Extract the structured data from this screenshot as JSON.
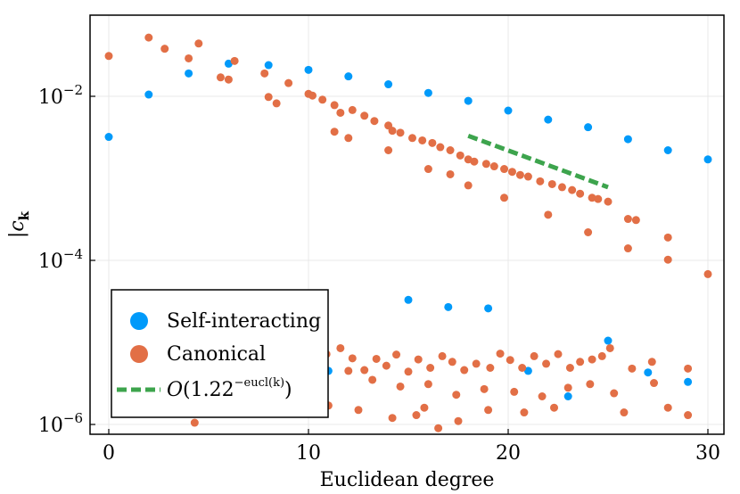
{
  "chart_data": {
    "type": "scatter",
    "xlabel": "Euclidean degree",
    "ylabel": "|c_k|",
    "xlim": [
      -1,
      31
    ],
    "ylim_log10": [
      -6.1,
      -4.9
    ],
    "y_scale": "log10",
    "grid": true,
    "legend_position": "bottom-left",
    "x_ticks": [
      0,
      10,
      20,
      30
    ],
    "y_ticks": [
      {
        "value": 0.01,
        "base": "10",
        "exp": "−2"
      },
      {
        "value": 0.0001,
        "base": "10",
        "exp": "−4"
      },
      {
        "value": 1e-06,
        "base": "10",
        "exp": "−6"
      }
    ],
    "series": [
      {
        "name": "Self-interacting",
        "color": "#009AFA",
        "kind": "scatter",
        "points": [
          [
            0,
            0.0032
          ],
          [
            2,
            0.0105
          ],
          [
            4,
            0.019
          ],
          [
            6,
            0.025
          ],
          [
            8,
            0.024
          ],
          [
            10,
            0.021
          ],
          [
            12,
            0.0175
          ],
          [
            14,
            0.014
          ],
          [
            16,
            0.011
          ],
          [
            18,
            0.0088
          ],
          [
            20,
            0.0067
          ],
          [
            22,
            0.0052
          ],
          [
            24,
            0.0042
          ],
          [
            26,
            0.003
          ],
          [
            28,
            0.0022
          ],
          [
            30,
            0.0017
          ],
          [
            15,
            3.3e-05
          ],
          [
            17,
            2.7e-05
          ],
          [
            19,
            2.6e-05
          ],
          [
            25,
            1.05e-05
          ],
          [
            21,
            4.5e-06
          ],
          [
            23,
            2.2e-06
          ],
          [
            27,
            4.3e-06
          ],
          [
            29,
            3.3e-06
          ],
          [
            11,
            4.5e-06
          ]
        ]
      },
      {
        "name": "Canonical",
        "color": "#E26F46",
        "kind": "scatter",
        "points": [
          [
            0,
            0.031
          ],
          [
            2,
            0.052
          ],
          [
            2.8,
            0.038
          ],
          [
            4,
            0.029
          ],
          [
            4.5,
            0.044
          ],
          [
            5.6,
            0.017
          ],
          [
            6,
            0.016
          ],
          [
            6.3,
            0.027
          ],
          [
            7.8,
            0.019
          ],
          [
            8,
            0.0098
          ],
          [
            8.4,
            0.0082
          ],
          [
            9,
            0.0145
          ],
          [
            10,
            0.0107
          ],
          [
            10.2,
            0.0102
          ],
          [
            10.7,
            0.0091
          ],
          [
            11.3,
            0.0078
          ],
          [
            11.6,
            0.0063
          ],
          [
            12.2,
            0.0068
          ],
          [
            12.8,
            0.0058
          ],
          [
            13.3,
            0.005
          ],
          [
            14,
            0.0044
          ],
          [
            14.2,
            0.0038
          ],
          [
            14.6,
            0.0036
          ],
          [
            15.2,
            0.0031
          ],
          [
            15.7,
            0.0029
          ],
          [
            16.2,
            0.0027
          ],
          [
            16.6,
            0.0024
          ],
          [
            17.1,
            0.0022
          ],
          [
            17.6,
            0.0019
          ],
          [
            18,
            0.0017
          ],
          [
            18.3,
            0.0016
          ],
          [
            18.9,
            0.0015
          ],
          [
            19.3,
            0.0014
          ],
          [
            19.8,
            0.0013
          ],
          [
            20.2,
            0.0012
          ],
          [
            20.6,
            0.0011
          ],
          [
            21.0,
            0.00105
          ],
          [
            21.6,
            0.00092
          ],
          [
            22.2,
            0.00085
          ],
          [
            22.7,
            0.00078
          ],
          [
            23.2,
            0.00072
          ],
          [
            23.6,
            0.00065
          ],
          [
            24.2,
            0.00058
          ],
          [
            24.5,
            0.00056
          ],
          [
            25,
            0.00052
          ],
          [
            26,
            0.00032
          ],
          [
            26.4,
            0.00031
          ],
          [
            28,
            0.00019
          ],
          [
            11.3,
            0.0037
          ],
          [
            12,
            0.0031
          ],
          [
            14,
            0.0022
          ],
          [
            16.0,
            0.0013
          ],
          [
            17.1,
            0.00112
          ],
          [
            18,
            0.00082
          ],
          [
            19.8,
            0.00058
          ],
          [
            22,
            0.00036
          ],
          [
            24,
            0.00022
          ],
          [
            26,
            0.00014
          ],
          [
            28,
            0.000102
          ],
          [
            30,
            6.8e-05
          ],
          [
            4.3,
            1.05e-06
          ],
          [
            9.2,
            7.5e-06
          ],
          [
            10.1,
            5.5e-06
          ],
          [
            10.9,
            7.2e-06
          ],
          [
            11.6,
            8.5e-06
          ],
          [
            12.2,
            6.4e-06
          ],
          [
            12.8,
            4.6e-06
          ],
          [
            13.4,
            6.3e-06
          ],
          [
            13.9,
            5.2e-06
          ],
          [
            14.4,
            7.1e-06
          ],
          [
            15.0,
            4.4e-06
          ],
          [
            15.5,
            6.2e-06
          ],
          [
            16.1,
            4.9e-06
          ],
          [
            16.7,
            6.8e-06
          ],
          [
            17.2,
            5.8e-06
          ],
          [
            17.8,
            4.6e-06
          ],
          [
            18.4,
            5.5e-06
          ],
          [
            19.1,
            4.9e-06
          ],
          [
            19.6,
            7.3e-06
          ],
          [
            20.1,
            6.1e-06
          ],
          [
            20.7,
            4.9e-06
          ],
          [
            21.3,
            6.8e-06
          ],
          [
            21.9,
            5.5e-06
          ],
          [
            22.5,
            7.2e-06
          ],
          [
            23.1,
            4.9e-06
          ],
          [
            23.6,
            5.8e-06
          ],
          [
            24.2,
            6.2e-06
          ],
          [
            24.7,
            6.8e-06
          ],
          [
            25.1,
            8.5e-06
          ],
          [
            9.9,
            3.3e-06
          ],
          [
            10.6,
            2.8e-06
          ],
          [
            12.0,
            4.5e-06
          ],
          [
            13.2,
            3.5e-06
          ],
          [
            14.6,
            2.9e-06
          ],
          [
            16.0,
            3.1e-06
          ],
          [
            17.4,
            2.3e-06
          ],
          [
            18.8,
            2.7e-06
          ],
          [
            20.3,
            2.5e-06
          ],
          [
            21.7,
            2.2e-06
          ],
          [
            23.0,
            2.8e-06
          ],
          [
            24.1,
            3.1e-06
          ],
          [
            25.3,
            2.4e-06
          ],
          [
            26.2,
            4.8e-06
          ],
          [
            27.2,
            5.8e-06
          ],
          [
            27.3,
            3.2e-06
          ],
          [
            29,
            4.8e-06
          ],
          [
            11.0,
            1.7e-06
          ],
          [
            12.5,
            1.5e-06
          ],
          [
            14.2,
            1.2e-06
          ],
          [
            15.8,
            1.6e-06
          ],
          [
            17.5,
            1.1e-06
          ],
          [
            19.0,
            1.5e-06
          ],
          [
            20.8,
            1.4e-06
          ],
          [
            22.3,
            1.6e-06
          ],
          [
            25.8,
            1.4e-06
          ],
          [
            28,
            1.6e-06
          ],
          [
            29,
            1.3e-06
          ],
          [
            16.5,
            9e-07
          ],
          [
            15.4,
            1.3e-06
          ]
        ]
      },
      {
        "name": "O(1.22^{-eucl(k)})",
        "color": "#3DA44D",
        "kind": "line",
        "dashed": true,
        "points": [
          [
            18,
            0.0033
          ],
          [
            25,
            0.00078
          ]
        ]
      }
    ],
    "legend": [
      {
        "label": "Self-interacting",
        "color": "#009AFA",
        "marker": "circle"
      },
      {
        "label": "Canonical",
        "color": "#E26F46",
        "marker": "circle"
      },
      {
        "label_main": "O(1.22",
        "label_sup": "−eucl(k)",
        "label_close": ")",
        "color": "#3DA44D",
        "marker": "dashed-line"
      }
    ]
  }
}
